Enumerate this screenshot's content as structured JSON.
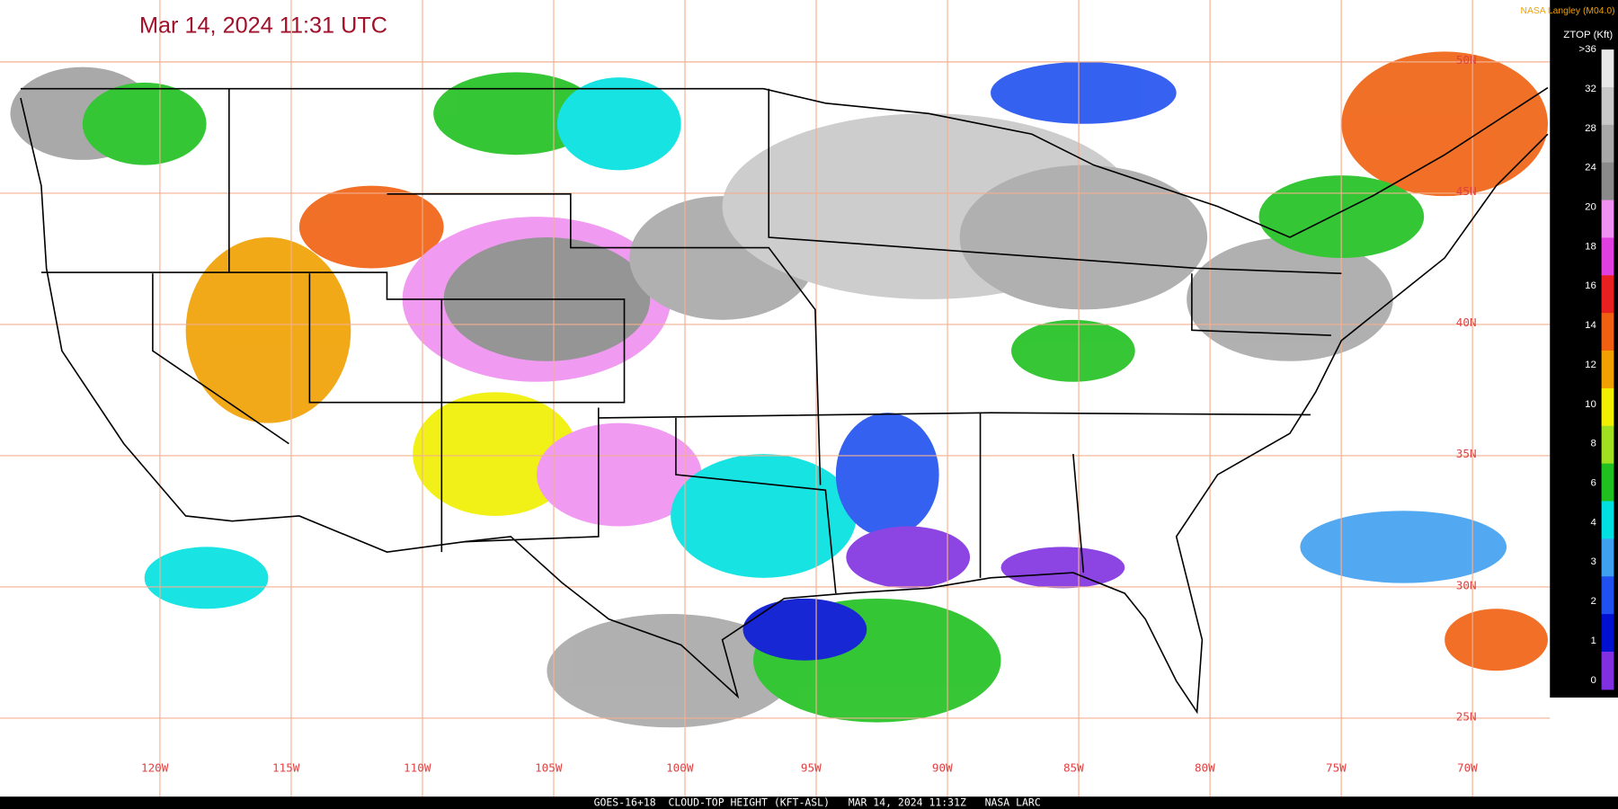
{
  "header": {
    "title": "Mar 14, 2024 11:31 UTC",
    "credit": "NASA Langley (M04.0)"
  },
  "colorbar": {
    "title": "ZTOP (Kft)",
    "labels": [
      ">36",
      "32",
      "28",
      "24",
      "20",
      "18",
      "16",
      "14",
      "12",
      "10",
      "8",
      "6",
      "4",
      "3",
      "2",
      "1",
      "0"
    ],
    "colors": [
      "#e8e8e8",
      "#c8c8c8",
      "#a8a8a8",
      "#8a8a8a",
      "#f090f0",
      "#e040e0",
      "#e82020",
      "#f06010",
      "#f0a000",
      "#f0f000",
      "#a0e020",
      "#20c020",
      "#00e0e0",
      "#40a0f0",
      "#2050f0",
      "#0010d0",
      "#8030e0"
    ]
  },
  "latitudes": [
    "50N",
    "45N",
    "40N",
    "35N",
    "30N",
    "25N"
  ],
  "longitudes": [
    "120W",
    "115W",
    "110W",
    "105W",
    "100W",
    "95W",
    "90W",
    "85W",
    "80W",
    "75W",
    "70W"
  ],
  "footer": "GOES-16+18  CLOUD-TOP HEIGHT (KFT-ASL)   MAR 14, 2024 11:31Z   NASA LARC"
}
